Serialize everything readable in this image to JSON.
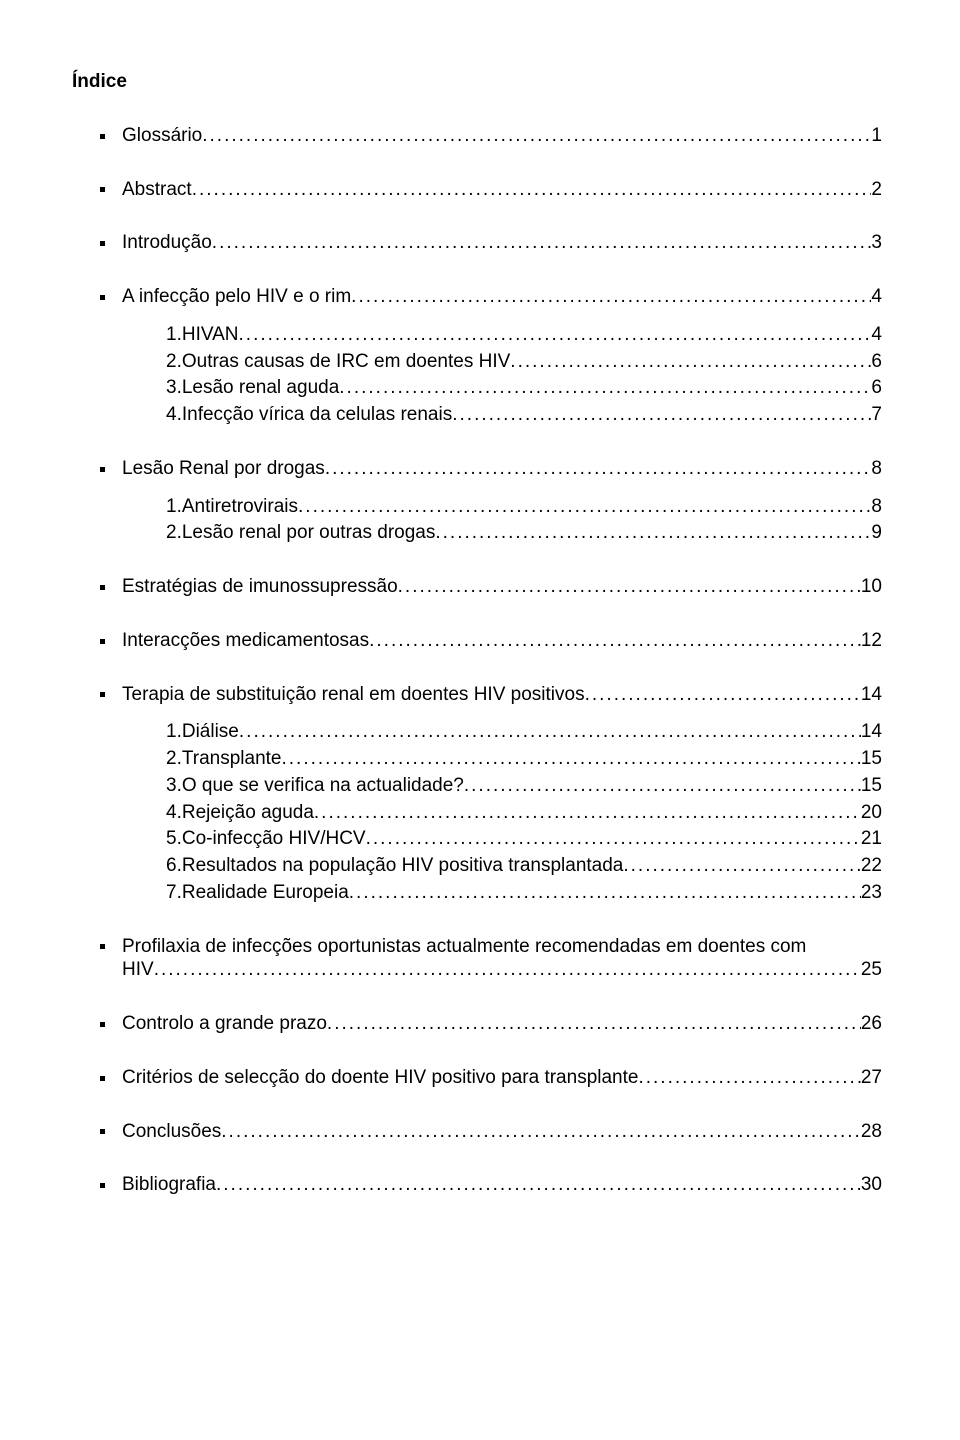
{
  "title": "Índice",
  "entries": [
    {
      "label": "Glossário",
      "page": "1"
    },
    {
      "label": "Abstract",
      "page": "2"
    },
    {
      "label": "Introdução",
      "page": "3"
    },
    {
      "label": "A infecção pelo HIV e o rim",
      "page": "4",
      "sub": [
        {
          "num": "1.",
          "label": "HIVAN",
          "page": "4"
        },
        {
          "num": "2.",
          "label": "Outras causas de IRC em doentes HIV",
          "page": "6"
        },
        {
          "num": "3.",
          "label": "Lesão renal aguda",
          "page": "6"
        },
        {
          "num": "4.",
          "label": "Infecção vírica da celulas renais",
          "page": "7"
        }
      ]
    },
    {
      "label": "Lesão Renal por drogas",
      "page": "8",
      "sub": [
        {
          "num": "1.",
          "label": "Antiretrovirais",
          "page": "8"
        },
        {
          "num": "2.",
          "label": "Lesão renal por outras drogas",
          "page": "9"
        }
      ]
    },
    {
      "label": "Estratégias de imunossupressão",
      "page": "10"
    },
    {
      "label": "Interacções medicamentosas",
      "page": "12"
    },
    {
      "label": "Terapia de substituição renal em doentes HIV positivos",
      "page": "14",
      "sub": [
        {
          "num": "1.",
          "label": "Diálise",
          "page": "14"
        },
        {
          "num": "2.",
          "label": "Transplante",
          "page": "15"
        },
        {
          "num": "3.",
          "label": "O que se verifica na actualidade?",
          "page": "15"
        },
        {
          "num": "4.",
          "label": "Rejeição aguda",
          "page": "20"
        },
        {
          "num": "5.",
          "label": "Co-infecção HIV/HCV",
          "page": "21"
        },
        {
          "num": "6.",
          "label": "Resultados na população HIV positiva transplantada",
          "page": "22"
        },
        {
          "num": "7.",
          "label": "Realidade Europeia",
          "page": "23"
        }
      ]
    },
    {
      "label": "Profilaxia de infecções oportunistas actualmente recomendadas em doentes com HIV",
      "page": "25",
      "multiline": true
    },
    {
      "label": "Controlo a grande prazo",
      "page": "26"
    },
    {
      "label": "Critérios de selecção do doente HIV positivo para transplante",
      "page": "27"
    },
    {
      "label": "Conclusões",
      "page": "28"
    },
    {
      "label": "Bibliografia",
      "page": "30"
    }
  ]
}
